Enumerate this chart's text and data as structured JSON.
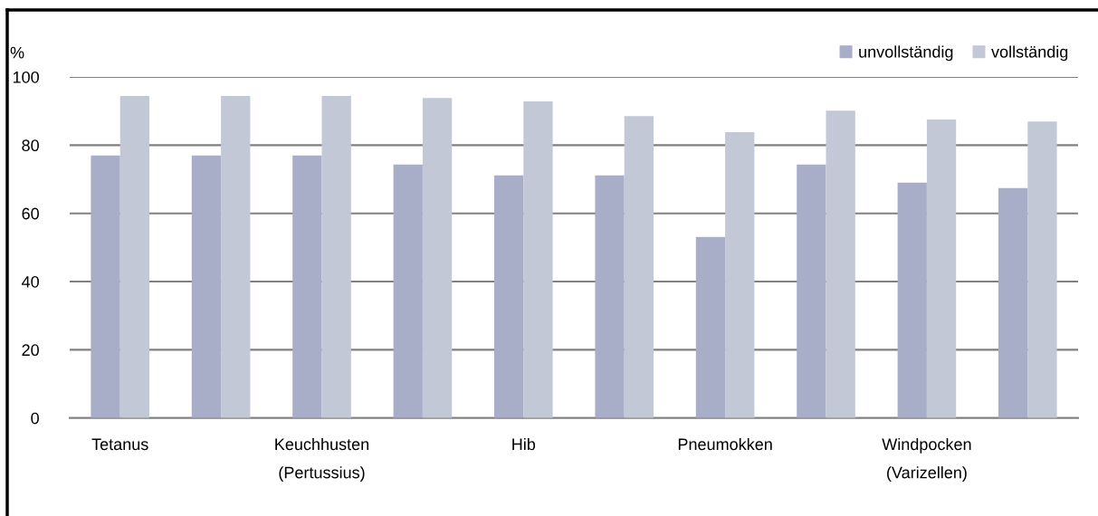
{
  "chart_data": {
    "type": "bar",
    "categories": [
      "Tetanus",
      null,
      "Keuchhusten\n(Pertussius)",
      null,
      "Hib",
      null,
      "Pneumokken",
      null,
      "Windpocken\n(Varizellen)",
      null
    ],
    "series": [
      {
        "name": "unvollständig",
        "color": "#a9aec8",
        "values": [
          77.0,
          77.0,
          77.0,
          74.3,
          71.1,
          71.1,
          53.1,
          74.3,
          69.0,
          67.4
        ]
      },
      {
        "name": "vollständig",
        "color": "#c3c8d7",
        "values": [
          94.4,
          94.4,
          94.4,
          93.8,
          92.8,
          88.5,
          83.8,
          90.1,
          87.5,
          86.9
        ]
      }
    ],
    "ylabel": "%",
    "ylim": [
      0,
      100
    ],
    "yticks": [
      0,
      20,
      40,
      60,
      80,
      100
    ],
    "grid": "y",
    "legend": "top right"
  }
}
